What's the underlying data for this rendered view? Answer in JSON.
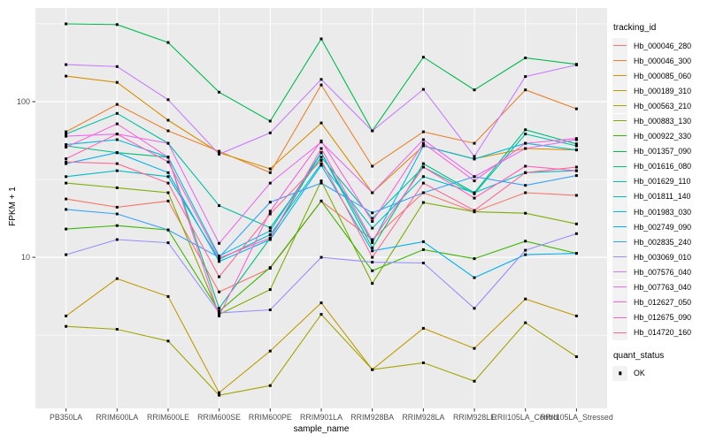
{
  "figure": {
    "background": "#ffffff",
    "panel_background": "#EBEBEB",
    "grid_color": "#FFFFFF",
    "tick_text_color": "#4D4D4D",
    "point_color": "#000000"
  },
  "x_axis": {
    "title": "sample_name"
  },
  "y_axis": {
    "title": "FPKM + 1",
    "tick_labels": [
      "100",
      "10"
    ]
  },
  "legend": {
    "title": "tracking_id",
    "quant_title": "quant_status",
    "quant_item_label": "OK"
  },
  "chart_data": {
    "type": "line",
    "title": "",
    "xlabel": "sample_name",
    "ylabel": "FPKM + 1",
    "y_scale": "log10",
    "ylim": [
      1.07,
      400
    ],
    "y_breaks": [
      100,
      10
    ],
    "y_break_labels": [
      "100",
      "10"
    ],
    "y_minor_breaks": [
      316.23,
      31.62,
      3.16
    ],
    "grid": true,
    "legend_position": "right",
    "point_marker": "black-square (quant_status OK)",
    "categories": [
      "PB350LA",
      "RRIM600LA",
      "RRIM600LE",
      "RRIM600SE",
      "RRIM600PE",
      "RRIM901LA",
      "RRIM928BA",
      "RRIM928LA",
      "RRIM928LE",
      "RRII105LA_Control",
      "RRII105LA_Stressed"
    ],
    "series": [
      {
        "name": "Hb_000046_280",
        "color": "#F8766D",
        "values": [
          23.7,
          21,
          23,
          6.0,
          8.5,
          23,
          13,
          26,
          19.6,
          26,
          25
        ]
      },
      {
        "name": "Hb_000046_300",
        "color": "#EA8331",
        "values": [
          64,
          96,
          65,
          48,
          35,
          128,
          38.5,
          64,
          54,
          119,
          90
        ]
      },
      {
        "name": "Hb_000085_060",
        "color": "#D89000",
        "values": [
          146,
          133,
          76,
          47,
          37,
          73,
          26,
          52,
          43,
          50,
          49
        ]
      },
      {
        "name": "Hb_000189_310",
        "color": "#C09B00",
        "values": [
          4.2,
          7.3,
          5.6,
          1.35,
          2.5,
          5.1,
          1.9,
          3.5,
          2.6,
          5.4,
          4.2
        ]
      },
      {
        "name": "Hb_000563_210",
        "color": "#A3A500",
        "values": [
          3.6,
          3.45,
          2.9,
          1.3,
          1.5,
          4.3,
          1.9,
          2.1,
          1.6,
          3.8,
          2.3
        ]
      },
      {
        "name": "Hb_000883_130",
        "color": "#7CAE00",
        "values": [
          30,
          28,
          26,
          4.3,
          6.2,
          31,
          6.8,
          22.5,
          19.6,
          19.2,
          16.4
        ]
      },
      {
        "name": "Hb_000922_330",
        "color": "#39B600",
        "values": [
          15.2,
          16,
          15,
          4.5,
          8.6,
          23,
          8.2,
          11.2,
          9.8,
          12.7,
          10.6
        ]
      },
      {
        "name": "Hb_001357_090",
        "color": "#00BB4E",
        "values": [
          316,
          313,
          240,
          115,
          75,
          253,
          65,
          193,
          119,
          191,
          174
        ]
      },
      {
        "name": "Hb_001616_080",
        "color": "#00BF7D",
        "values": [
          52,
          47,
          44,
          4.7,
          13.3,
          47,
          11.5,
          40,
          26,
          66,
          53.5
        ]
      },
      {
        "name": "Hb_001629_110",
        "color": "#00C1A3",
        "values": [
          62,
          84,
          54,
          21.5,
          15.5,
          44,
          17.8,
          38,
          25.6,
          62,
          52
        ]
      },
      {
        "name": "Hb_001811_140",
        "color": "#00BFC4",
        "values": [
          33,
          36,
          33,
          9.7,
          14,
          40,
          15.4,
          33,
          26,
          35,
          36
        ]
      },
      {
        "name": "Hb_001983_030",
        "color": "#00BAE0",
        "values": [
          53,
          57,
          44,
          10.2,
          14.8,
          47,
          12.4,
          52,
          42.8,
          54,
          49
        ]
      },
      {
        "name": "Hb_002749_090",
        "color": "#00B0F6",
        "values": [
          40,
          47,
          35,
          9.4,
          13,
          39,
          11,
          12.6,
          7.4,
          10.4,
          10.6
        ]
      },
      {
        "name": "Hb_002835_240",
        "color": "#35A2FF",
        "values": [
          20.3,
          19,
          15,
          10.0,
          22.6,
          30,
          19.3,
          26,
          33,
          29,
          33.5
        ]
      },
      {
        "name": "Hb_003069_010",
        "color": "#9590FF",
        "values": [
          10.4,
          13,
          12.4,
          4.4,
          4.6,
          10,
          9.3,
          9.2,
          4.7,
          11.1,
          14.2
        ]
      },
      {
        "name": "Hb_007576_040",
        "color": "#C77CFF",
        "values": [
          173,
          168,
          103,
          46,
          63,
          139,
          65,
          120,
          44.5,
          145,
          172
        ]
      },
      {
        "name": "Hb_007763_040",
        "color": "#E76BF3",
        "values": [
          60,
          62,
          54,
          12.3,
          30,
          55,
          26,
          57,
          33,
          50,
          57
        ]
      },
      {
        "name": "Hb_012627_050",
        "color": "#FA62DB",
        "values": [
          51,
          72,
          44,
          4.2,
          19.8,
          56,
          17,
          54,
          31,
          54,
          58
        ]
      },
      {
        "name": "Hb_012675_090",
        "color": "#FF62BC",
        "values": [
          43,
          62,
          41,
          9.9,
          13.3,
          50,
          12.8,
          38,
          24,
          38.5,
          36
        ]
      },
      {
        "name": "Hb_014720_160",
        "color": "#FF6A98",
        "values": [
          41,
          40,
          30,
          7.5,
          19,
          42,
          10,
          30,
          20,
          35,
          38
        ]
      }
    ]
  }
}
